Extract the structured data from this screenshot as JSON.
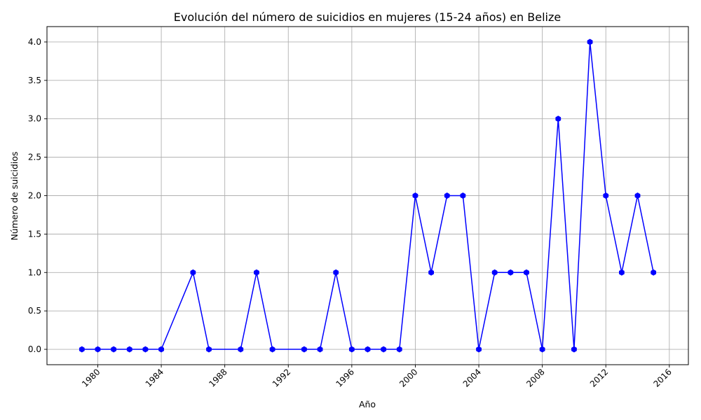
{
  "chart_data": {
    "type": "line",
    "title": "Evolución del número de suicidios en mujeres (15-24 años) en Belize",
    "xlabel": "Año",
    "ylabel": "Número de suicidios",
    "xlim": [
      1976.8,
      2017.2
    ],
    "ylim": [
      -0.2,
      4.2
    ],
    "x_ticks": [
      1980,
      1984,
      1988,
      1992,
      1996,
      2000,
      2004,
      2008,
      2012,
      2016
    ],
    "y_ticks": [
      0.0,
      0.5,
      1.0,
      1.5,
      2.0,
      2.5,
      3.0,
      3.5,
      4.0
    ],
    "grid": true,
    "series": [
      {
        "color": "#0000ff",
        "marker": "hexagon",
        "x": [
          1979,
          1980,
          1981,
          1982,
          1983,
          1984,
          1986,
          1987,
          1989,
          1990,
          1991,
          1993,
          1994,
          1995,
          1996,
          1997,
          1998,
          1999,
          2000,
          2001,
          2002,
          2003,
          2004,
          2005,
          2006,
          2007,
          2008,
          2009,
          2010,
          2011,
          2012,
          2013,
          2014,
          2015
        ],
        "y": [
          0,
          0,
          0,
          0,
          0,
          0,
          1,
          0,
          0,
          1,
          0,
          0,
          0,
          1,
          0,
          0,
          0,
          0,
          2,
          1,
          2,
          2,
          0,
          1,
          1,
          1,
          0,
          3,
          0,
          4,
          2,
          1,
          2,
          1
        ]
      }
    ]
  }
}
